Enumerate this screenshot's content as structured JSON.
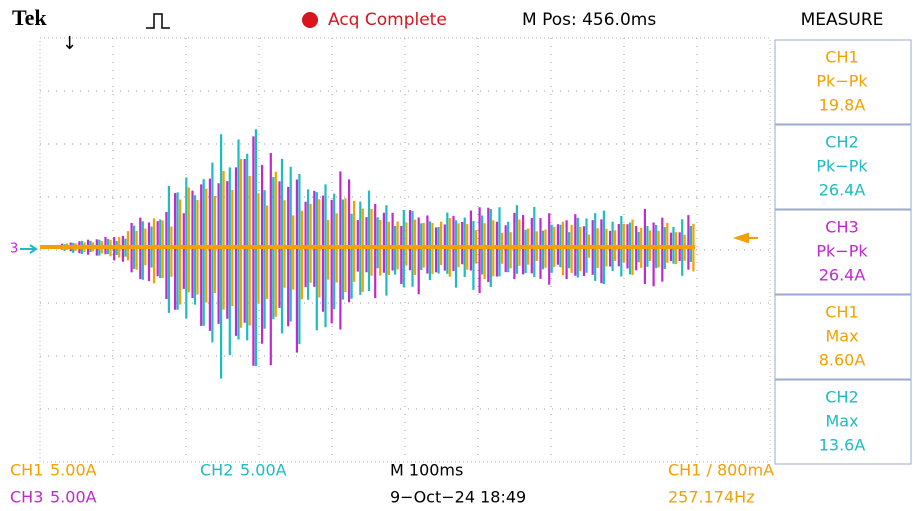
{
  "header": {
    "brand": "Tek",
    "status": "Acq Complete",
    "position": "M Pos: 456.0ms",
    "panel_title": "MEASURE"
  },
  "ground_marker": "3",
  "measurements": [
    {
      "source": "CH1",
      "kind": "Pk−Pk",
      "value": "19.8A",
      "color": "#f5a000"
    },
    {
      "source": "CH2",
      "kind": "Pk−Pk",
      "value": "26.4A",
      "color": "#1cbcc0"
    },
    {
      "source": "CH3",
      "kind": "Pk−Pk",
      "value": "26.4A",
      "color": "#c028d0"
    },
    {
      "source": "CH1",
      "kind": "Max",
      "value": "8.60A",
      "color": "#f5a000"
    },
    {
      "source": "CH2",
      "kind": "Max",
      "value": "13.6A",
      "color": "#1cbcc0"
    }
  ],
  "footer": {
    "ch1": "CH1",
    "ch1_scale": "5.00A",
    "ch2": "CH2",
    "ch2_scale": "5.00A",
    "ch3": "CH3",
    "ch3_scale": "5.00A",
    "timebase": "M 100ms",
    "date": "9−Oct−24 18:49",
    "trigger": "CH1 ∕ 800mA",
    "frequency": "257.174Hz"
  }
}
